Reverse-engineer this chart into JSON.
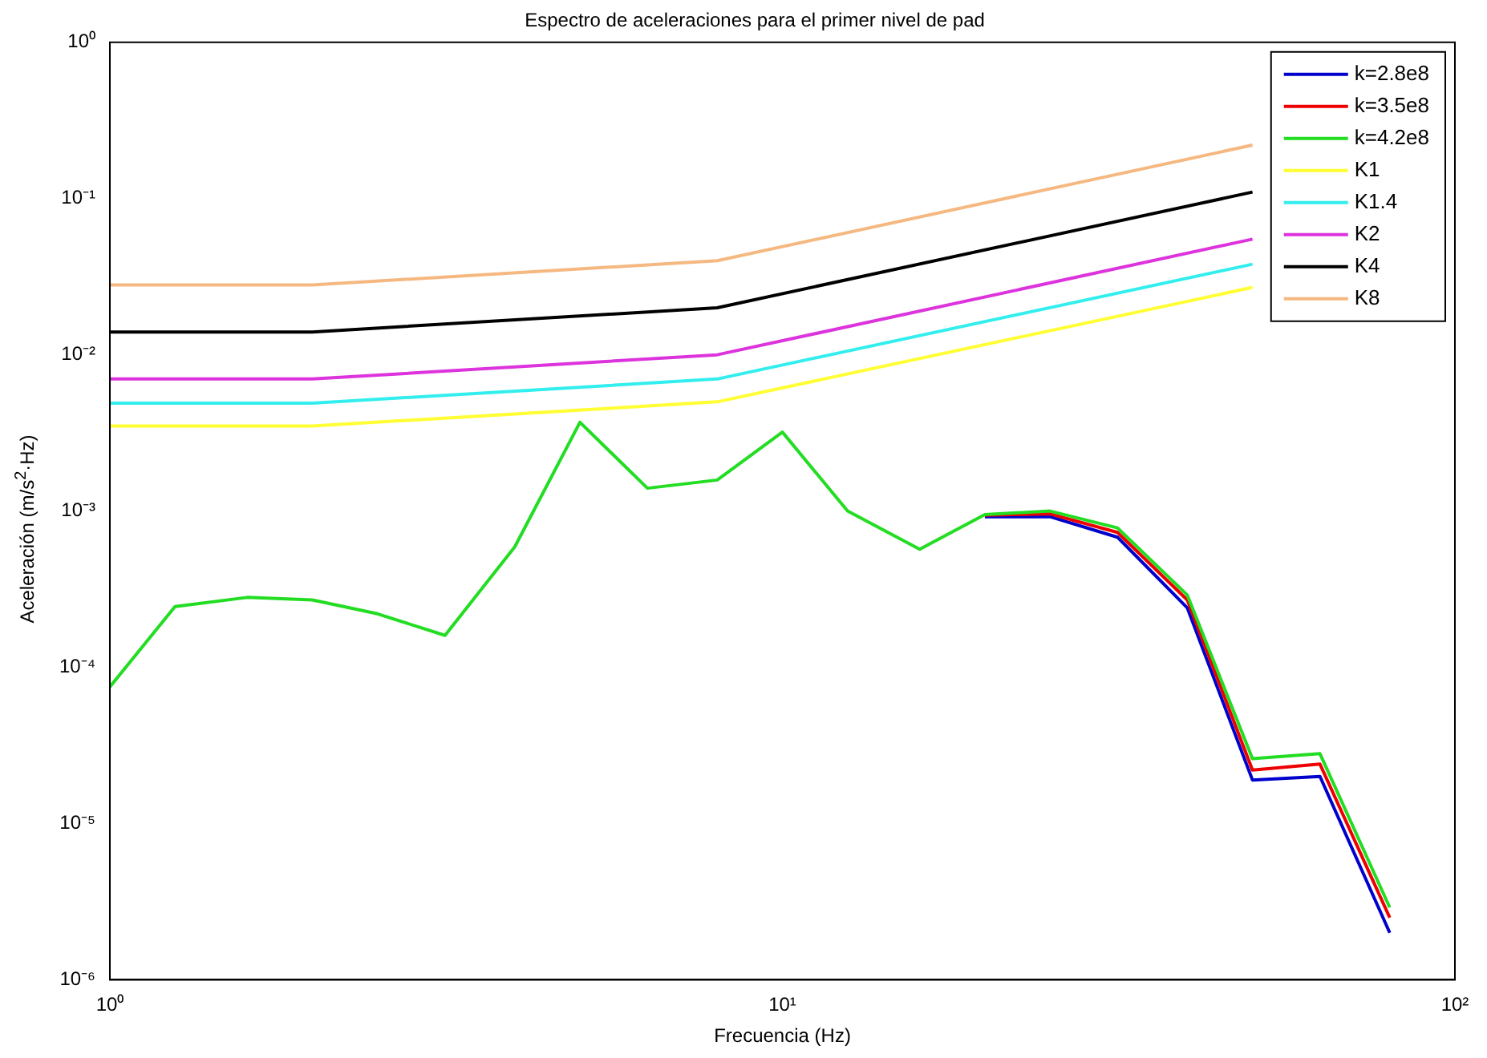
{
  "chart_data": {
    "type": "line",
    "title": "Espectro de aceleraciones para el primer nivel de pad",
    "xlabel": "Frecuencia (Hz)",
    "ylabel": "Aceleración (m/s$^{2}$·Hz)",
    "log": "xy",
    "grid": false,
    "legend": "top right",
    "marker": "none",
    "line_style": "solid",
    "x": [
      1,
      1.25,
      1.6,
      2,
      2.5,
      3.15,
      4,
      5,
      6.3,
      8,
      10,
      12.5,
      16,
      20,
      25,
      31.5,
      40,
      50,
      63,
      80
    ],
    "xlim": [
      1,
      100
    ],
    "xticks": [
      {
        "value": 1,
        "label": "10⁰"
      },
      {
        "value": 10,
        "label": "10¹"
      },
      {
        "value": 100,
        "label": "10²"
      }
    ],
    "ylim": [
      1e-06,
      1
    ],
    "yticks": [
      {
        "value": 1e-06,
        "label": "10⁻⁶"
      },
      {
        "value": 1e-05,
        "label": "10⁻⁵"
      },
      {
        "value": 0.0001,
        "label": "10⁻⁴"
      },
      {
        "value": 0.001,
        "label": "10⁻³"
      },
      {
        "value": 0.01,
        "label": "10⁻²"
      },
      {
        "value": 0.1,
        "label": "10⁻¹"
      },
      {
        "value": 1,
        "label": "10⁰"
      }
    ],
    "series": [
      {
        "name": "k=2.8e8",
        "color": "#0000cc",
        "values": [
          null,
          null,
          null,
          null,
          null,
          null,
          null,
          null,
          null,
          null,
          null,
          null,
          null,
          0.00092,
          0.00092,
          0.00068,
          0.00024,
          1.9e-05,
          2e-05,
          2e-06
        ]
      },
      {
        "name": "k=3.5e8",
        "color": "#ee0000",
        "values": [
          null,
          null,
          null,
          null,
          null,
          null,
          null,
          null,
          null,
          null,
          null,
          null,
          null,
          0.00094,
          0.00096,
          0.00073,
          0.00027,
          2.2e-05,
          2.4e-05,
          2.5e-06
        ]
      },
      {
        "name": "k=4.2e8",
        "color": "#22dd22",
        "values": [
          7.5e-05,
          0.000245,
          0.00028,
          0.00027,
          0.00022,
          0.00016,
          0.00059,
          0.0037,
          0.0014,
          0.00158,
          0.0032,
          0.001,
          0.00057,
          0.00095,
          0.001,
          0.00078,
          0.00029,
          2.6e-05,
          2.8e-05,
          2.9e-06
        ]
      },
      {
        "name": "K1",
        "color": "#ffff33",
        "x": [
          1,
          2,
          8,
          50
        ],
        "values": [
          0.0035,
          0.0035,
          0.005,
          0.027
        ]
      },
      {
        "name": "K1.4",
        "color": "#33eeee",
        "x": [
          1,
          2,
          8,
          50
        ],
        "values": [
          0.0049,
          0.0049,
          0.007,
          0.038
        ]
      },
      {
        "name": "K2",
        "color": "#dd33dd",
        "x": [
          1,
          2,
          8,
          50
        ],
        "values": [
          0.007,
          0.007,
          0.01,
          0.055
        ]
      },
      {
        "name": "K4",
        "color": "#000000",
        "x": [
          1,
          2,
          8,
          50
        ],
        "values": [
          0.014,
          0.014,
          0.02,
          0.11
        ]
      },
      {
        "name": "K8",
        "color": "#f5b880",
        "x": [
          1,
          2,
          8,
          50
        ],
        "values": [
          0.028,
          0.028,
          0.04,
          0.22
        ]
      }
    ]
  }
}
